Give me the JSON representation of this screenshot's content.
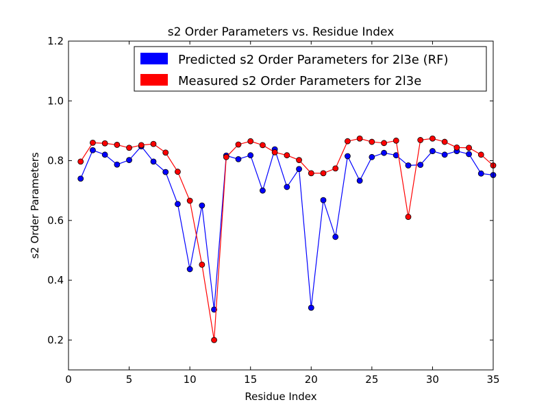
{
  "chart_data": {
    "type": "line",
    "title": "s2 Order Parameters vs. Residue Index",
    "xlabel": "Residue Index",
    "ylabel": "s2 Order Parameters",
    "xlim": [
      0,
      35
    ],
    "ylim": [
      0.1,
      1.2
    ],
    "xticks": [
      "0",
      "5",
      "10",
      "15",
      "20",
      "25",
      "30",
      "35"
    ],
    "yticks": [
      "0.2",
      "0.4",
      "0.6",
      "0.8",
      "1.0",
      "1.2"
    ],
    "grid": false,
    "legend_position": "top-right",
    "x": [
      1,
      2,
      3,
      4,
      5,
      6,
      7,
      8,
      9,
      10,
      11,
      12,
      13,
      14,
      15,
      16,
      17,
      18,
      19,
      20,
      21,
      22,
      23,
      24,
      25,
      26,
      27,
      28,
      29,
      30,
      31,
      32,
      33,
      34,
      35
    ],
    "series": [
      {
        "name": "Predicted s2 Order Parameters for 2l3e (RF)",
        "color": "#0000ff",
        "values": [
          0.74,
          0.835,
          0.82,
          0.787,
          0.802,
          0.848,
          0.797,
          0.762,
          0.655,
          0.437,
          0.65,
          0.302,
          0.817,
          0.805,
          0.818,
          0.7,
          0.838,
          0.712,
          0.772,
          0.308,
          0.668,
          0.545,
          0.815,
          0.733,
          0.812,
          0.826,
          0.818,
          0.784,
          0.786,
          0.832,
          0.82,
          0.832,
          0.822,
          0.757,
          0.752
        ]
      },
      {
        "name": "Measured s2 Order Parameters for 2l3e",
        "color": "#ff0000",
        "values": [
          0.797,
          0.86,
          0.858,
          0.853,
          0.843,
          0.852,
          0.856,
          0.827,
          0.763,
          0.666,
          0.452,
          0.2,
          0.812,
          0.854,
          0.865,
          0.852,
          0.828,
          0.818,
          0.802,
          0.758,
          0.758,
          0.774,
          0.865,
          0.874,
          0.863,
          0.859,
          0.867,
          0.612,
          0.869,
          0.874,
          0.863,
          0.844,
          0.843,
          0.82,
          0.784
        ]
      }
    ]
  }
}
